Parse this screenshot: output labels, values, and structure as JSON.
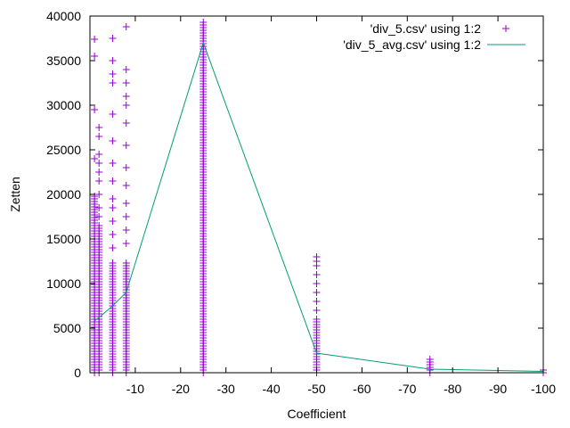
{
  "chart_data": {
    "type": "scatter",
    "xlabel": "Coefficient",
    "ylabel": "Zetten",
    "xlim": [
      0,
      -100
    ],
    "ylim": [
      0,
      40000
    ],
    "x_ticks": [
      -10,
      -20,
      -30,
      -40,
      -50,
      -60,
      -70,
      -80,
      -90,
      -100
    ],
    "y_ticks": [
      0,
      5000,
      10000,
      15000,
      20000,
      25000,
      30000,
      35000,
      40000
    ],
    "grid": false,
    "legend_position": "top-right",
    "colors": {
      "scatter": "#9400d3",
      "line": "#009e73"
    },
    "series": [
      {
        "name": "'div_5.csv' using 1:2",
        "kind": "points",
        "columns": [
          {
            "x": -1,
            "min": 0,
            "dense_max": 20000,
            "outliers": [
              24000,
              29500,
              35500,
              37400
            ]
          },
          {
            "x": -2,
            "min": 0,
            "dense_max": 16500,
            "outliers": [
              17500,
              18500,
              20000,
              21500,
              22500,
              23500,
              24500,
              26500,
              27500
            ]
          },
          {
            "x": -5,
            "min": 0,
            "dense_max": 12500,
            "outliers": [
              14000,
              15500,
              17000,
              18500,
              19500,
              21500,
              23500,
              26000,
              29000,
              32500,
              33500,
              35000,
              37500
            ]
          },
          {
            "x": -8,
            "min": 0,
            "dense_max": 12500,
            "outliers": [
              14500,
              16000,
              17500,
              19000,
              21000,
              23000,
              25500,
              28000,
              30000,
              31000,
              32500,
              34000,
              38800
            ]
          },
          {
            "x": -25,
            "min": 0,
            "dense_max": 39500,
            "outliers": []
          },
          {
            "x": -50,
            "min": 0,
            "dense_max": 6000,
            "outliers": [
              7000,
              8000,
              9000,
              10000,
              11000,
              12000,
              12500,
              13000
            ]
          },
          {
            "x": -75,
            "min": 0,
            "dense_max": 1200,
            "outliers": [
              1500
            ]
          },
          {
            "x": -100,
            "min": 0,
            "dense_max": 500,
            "outliers": []
          }
        ]
      },
      {
        "name": "'div_5_avg.csv' using 1:2",
        "kind": "line",
        "x": [
          -1,
          -2,
          -5,
          -8,
          -25,
          -50,
          -75,
          -100
        ],
        "y": [
          5800,
          6200,
          7500,
          9000,
          37000,
          2200,
          400,
          150
        ]
      }
    ]
  }
}
